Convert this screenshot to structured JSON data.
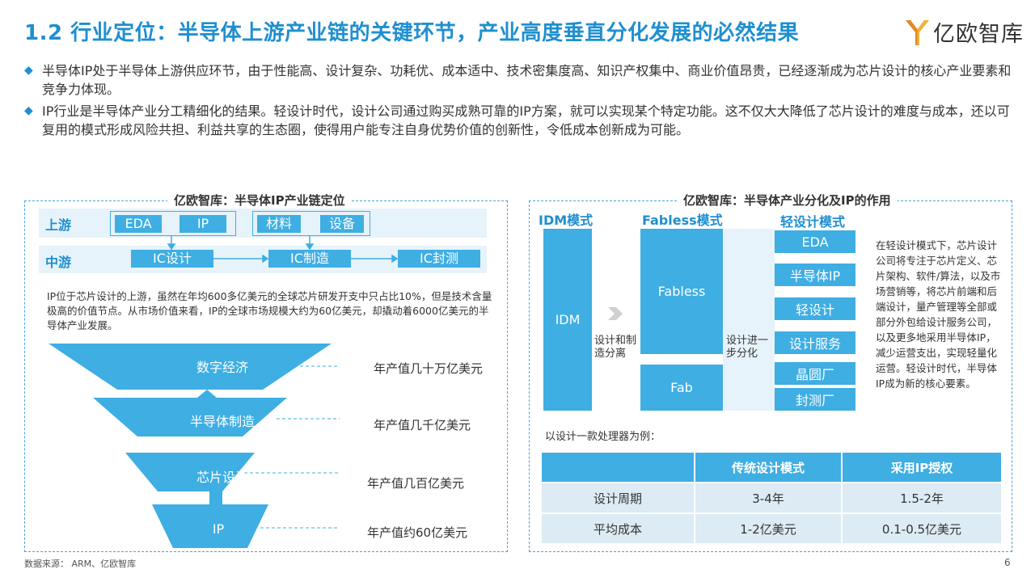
{
  "title": "1.2 行业定位：半导体上游产业链的关键环节，产业高度垂直分化发展的必然结果",
  "logo": {
    "icon": "yiou-logo-icon",
    "text": "亿欧智库"
  },
  "bullets": [
    "半导体IP处于半导体上游供应环节，由于性能高、设计复杂、功耗优、成本适中、技术密集度高、知识产权集中、商业价值昂贵，已经逐渐成为芯片设计的核心产业要素和竞争力体现。",
    "IP行业是半导体产业分工精细化的结果。轻设计时代，设计公司通过购买成熟可靠的IP方案，就可以实现某个特定功能。这不仅大大降低了芯片设计的难度与成本，还以可复用的模式形成风险共担、利益共享的生态圈，使得用户能专注自身优势价值的创新性，令低成本创新成为可能。"
  ],
  "left_panel": {
    "title": "亿欧智库：半导体IP产业链定位",
    "upstream_label": "上游",
    "midstream_label": "中游",
    "upstream_group1": [
      "EDA",
      "IP"
    ],
    "upstream_group2": [
      "材料",
      "设备"
    ],
    "midstream": [
      "IC设计",
      "IC制造",
      "IC封测"
    ],
    "description": "IP位于芯片设计的上游，虽然在年均600多亿美元的全球芯片研发开支中只占比10%，但是技术含量极高的价值节点。从市场价值来看，IP的全球市场规模大约为60亿美元，却撬动着6000亿美元的半导体产业发展。",
    "funnel": [
      {
        "label": "数字经济",
        "value": "年产值几十万亿美元"
      },
      {
        "label": "半导体制造",
        "value": "年产值几千亿美元"
      },
      {
        "label": "芯片设计",
        "value": "年产值几百亿美元"
      },
      {
        "label": "IP",
        "value": "年产值约60亿美元"
      }
    ]
  },
  "right_panel": {
    "title": "亿欧智库：半导体产业分化及IP的作用",
    "idm_head": "IDM模式",
    "fabless_head": "Fabless模式",
    "light_head": "轻设计模式",
    "idm_block": "IDM",
    "idm_note": "设计和制造分离",
    "fabless_block": "Fabless",
    "fab_block": "Fab",
    "fabless_note": "设计进一步分化",
    "light_items": [
      "EDA",
      "半导体IP",
      "轻设计",
      "设计服务",
      "晶圆厂",
      "封测厂"
    ],
    "side_text": "在轻设计模式下，芯片设计公司将专注于芯片定义、芯片架构、软件/算法，以及市场营销等，将芯片前端和后端设计，量产管理等全部或部分外包给设计服务公司，以及更多地采用半导体IP，减少运营支出，实现轻量化运营。轻设计时代，半导体IP成为新的核心要素。",
    "example_label": "以设计一款处理器为例：",
    "table": {
      "headers": [
        "",
        "传统设计模式",
        "采用IP授权"
      ],
      "rows": [
        [
          "设计周期",
          "3-4年",
          "1.5-2年"
        ],
        [
          "平均成本",
          "1-2亿美元",
          "0.1-0.5亿美元"
        ]
      ]
    }
  },
  "footer": {
    "source": "数据来源： ARM、亿欧智库",
    "page": "6"
  },
  "colors": {
    "accent": "#1f8fd0",
    "block": "#3eaee3",
    "band": "#e7f3fa"
  }
}
